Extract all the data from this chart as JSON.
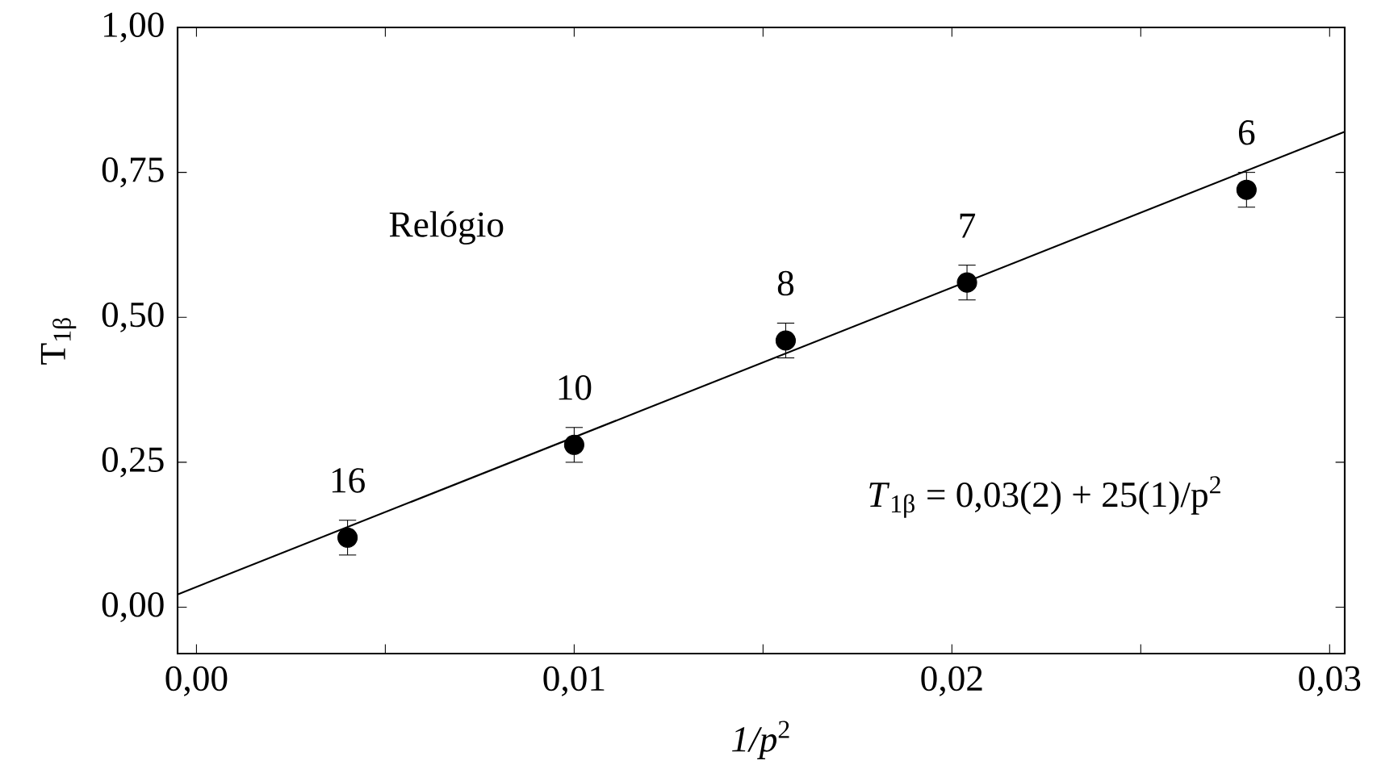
{
  "chart_data": {
    "type": "scatter",
    "xlabel": "*1/p*$^{2}$",
    "ylabel": "T$_{1β}$",
    "xlim": [
      -0.0005,
      0.0304
    ],
    "ylim": [
      -0.08,
      1.0
    ],
    "xticks": [
      {
        "value": 0,
        "label": "0,00"
      },
      {
        "value": 0.005,
        "label": null
      },
      {
        "value": 0.01,
        "label": "0,01"
      },
      {
        "value": 0.015,
        "label": null
      },
      {
        "value": 0.02,
        "label": "0,02"
      },
      {
        "value": 0.025,
        "label": null
      },
      {
        "value": 0.03,
        "label": "0,03"
      }
    ],
    "yticks": [
      {
        "value": 0,
        "label": "0,00"
      },
      {
        "value": 0.25,
        "label": "0,25"
      },
      {
        "value": 0.5,
        "label": "0,50"
      },
      {
        "value": 0.75,
        "label": "0,75"
      },
      {
        "value": 1.0,
        "label": "1,00"
      }
    ],
    "grid": false,
    "series": [
      {
        "color": "#000000",
        "marker": "circle",
        "x": [
          0.004,
          0.01,
          0.0156,
          0.0204,
          0.0278
        ],
        "values": [
          0.12,
          0.28,
          0.46,
          0.56,
          0.72
        ],
        "errors": [
          0.03,
          0.03,
          0.03,
          0.03,
          0.03
        ]
      },
      {
        "type": "line",
        "color": "#000000",
        "marker": "none",
        "line_style": "solid",
        "x": [
          -0.0005,
          0.0304
        ],
        "values": [
          0.022,
          0.82
        ]
      }
    ],
    "annotations": [
      {
        "text": "16",
        "x": 0.004,
        "y": 0.12
      },
      {
        "text": "10",
        "x": 0.01,
        "y": 0.28
      },
      {
        "text": "8",
        "x": 0.0156,
        "y": 0.46
      },
      {
        "text": "7",
        "x": 0.0204,
        "y": 0.56
      },
      {
        "text": "6",
        "x": 0.0278,
        "y": 0.72
      },
      "Relógio",
      "*T*$_{1β}$ = 0,03(2) + 25(1)/p$^{2}$"
    ]
  }
}
